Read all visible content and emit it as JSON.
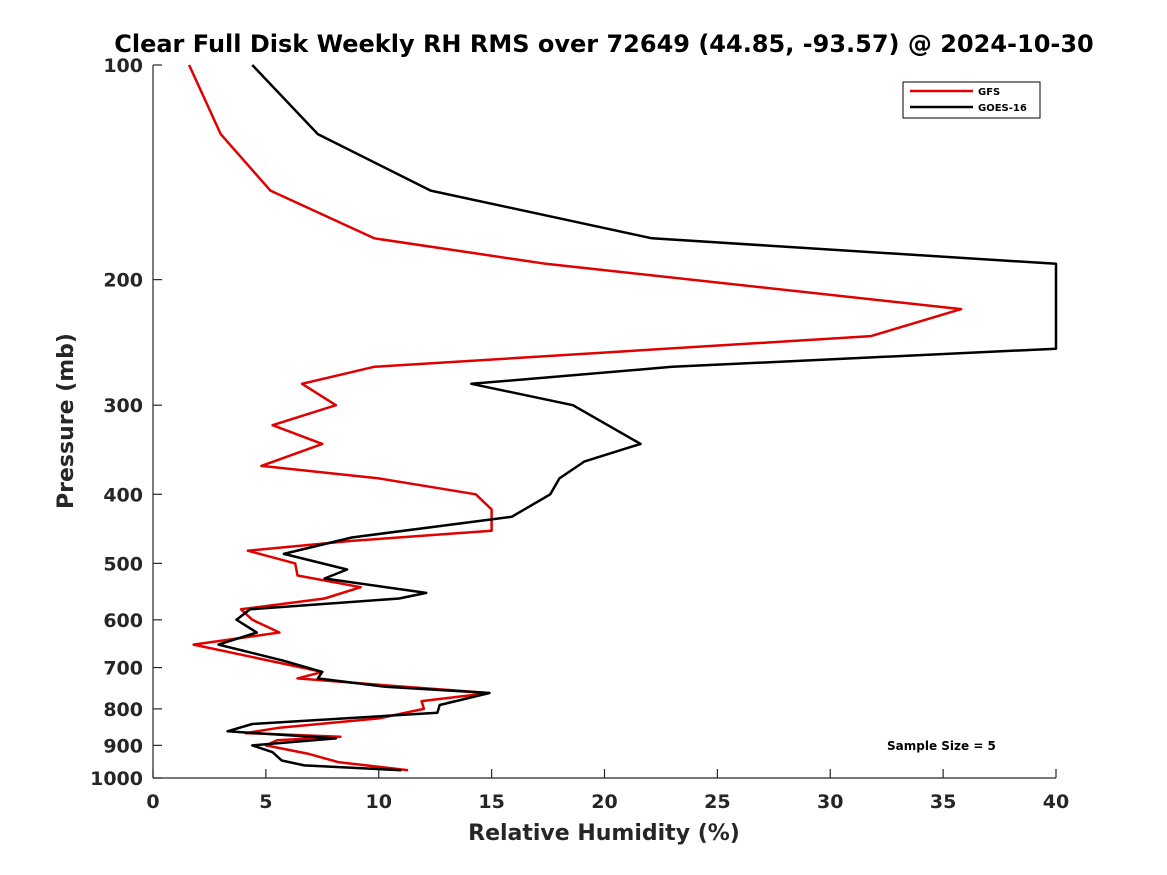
{
  "chart_data": {
    "type": "line",
    "title": "Clear Full Disk Weekly RH RMS over 72649 (44.85, -93.57) @ 2024-10-30",
    "xlabel": "Relative Humidity (%)",
    "ylabel": "Pressure (mb)",
    "xlim": [
      0,
      40
    ],
    "ylim": [
      100,
      1000
    ],
    "y_scale": "log",
    "y_reversed": true,
    "x_ticks": [
      0,
      5,
      10,
      15,
      20,
      25,
      30,
      35,
      40
    ],
    "y_ticks": [
      100,
      200,
      300,
      400,
      500,
      600,
      700,
      800,
      900,
      1000
    ],
    "grid": false,
    "legend_position": "top-right",
    "annotation": "Sample Size = 5",
    "series": [
      {
        "name": "GFS",
        "color": "#e00000",
        "points": [
          [
            1.6,
            100
          ],
          [
            3.0,
            125
          ],
          [
            5.2,
            150
          ],
          [
            9.8,
            175
          ],
          [
            17.4,
            190
          ],
          [
            35.8,
            220
          ],
          [
            31.8,
            240
          ],
          [
            9.8,
            265
          ],
          [
            6.6,
            280
          ],
          [
            8.1,
            300
          ],
          [
            5.3,
            320
          ],
          [
            7.5,
            340
          ],
          [
            4.8,
            365
          ],
          [
            10.0,
            380
          ],
          [
            14.3,
            400
          ],
          [
            15.0,
            420
          ],
          [
            15.0,
            450
          ],
          [
            8.8,
            465
          ],
          [
            4.2,
            480
          ],
          [
            6.3,
            500
          ],
          [
            6.4,
            520
          ],
          [
            9.2,
            540
          ],
          [
            7.6,
            560
          ],
          [
            3.9,
            580
          ],
          [
            4.4,
            600
          ],
          [
            5.6,
            625
          ],
          [
            1.8,
            650
          ],
          [
            6.6,
            700
          ],
          [
            7.5,
            710
          ],
          [
            6.4,
            725
          ],
          [
            10.0,
            740
          ],
          [
            14.9,
            760
          ],
          [
            11.9,
            780
          ],
          [
            12.0,
            800
          ],
          [
            10.0,
            825
          ],
          [
            5.6,
            850
          ],
          [
            4.1,
            865
          ],
          [
            8.3,
            875
          ],
          [
            5.5,
            885
          ],
          [
            5.0,
            900
          ],
          [
            6.9,
            925
          ],
          [
            8.2,
            950
          ],
          [
            11.3,
            975
          ]
        ]
      },
      {
        "name": "GOES-16",
        "color": "#000000",
        "points": [
          [
            4.4,
            100
          ],
          [
            7.3,
            125
          ],
          [
            12.3,
            150
          ],
          [
            22.1,
            175
          ],
          [
            40.0,
            190
          ],
          [
            40.0,
            250
          ],
          [
            23.0,
            265
          ],
          [
            14.1,
            280
          ],
          [
            18.6,
            300
          ],
          [
            21.6,
            340
          ],
          [
            19.1,
            360
          ],
          [
            18.0,
            380
          ],
          [
            17.6,
            400
          ],
          [
            15.9,
            430
          ],
          [
            8.8,
            460
          ],
          [
            5.8,
            485
          ],
          [
            8.6,
            510
          ],
          [
            7.6,
            525
          ],
          [
            12.1,
            550
          ],
          [
            10.9,
            560
          ],
          [
            4.3,
            580
          ],
          [
            3.7,
            600
          ],
          [
            4.6,
            625
          ],
          [
            2.9,
            650
          ],
          [
            5.8,
            685
          ],
          [
            7.5,
            710
          ],
          [
            7.3,
            725
          ],
          [
            10.3,
            745
          ],
          [
            14.9,
            760
          ],
          [
            12.7,
            790
          ],
          [
            12.6,
            810
          ],
          [
            4.4,
            840
          ],
          [
            3.3,
            860
          ],
          [
            8.1,
            880
          ],
          [
            4.4,
            900
          ],
          [
            5.3,
            920
          ],
          [
            5.7,
            945
          ],
          [
            6.7,
            960
          ],
          [
            11.0,
            975
          ]
        ]
      }
    ]
  }
}
